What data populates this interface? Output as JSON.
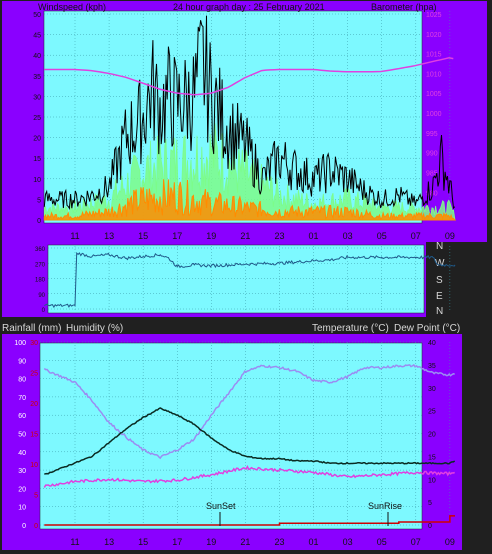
{
  "header": {
    "windspeed_label": "Windspeed (kph)",
    "title": "24 hour graph day : 25 February 2021",
    "barometer_label": "Barometer (hpa)"
  },
  "direction_labels": [
    "N",
    "W",
    "S",
    "E",
    "N"
  ],
  "row_labels": {
    "rainfall": "Rainfall (mm)",
    "humidity": "Humidity (%)",
    "temperature": "Temperature (°C)",
    "dewpoint": "Dew Point (°C)"
  },
  "markers": {
    "sunset": "SunSet",
    "sunrise": "SunRise"
  },
  "x_ticks": [
    "11",
    "13",
    "15",
    "17",
    "19",
    "21",
    "23",
    "01",
    "03",
    "05",
    "07",
    "09"
  ],
  "colors": {
    "panel_bg": "#7df9ff",
    "frame": "#8a00ff",
    "gust": "#000000",
    "average": "#7cfc8a",
    "lull": "#ff8c00",
    "barometer": "#e040e0",
    "direction": "#1f5a8a",
    "temperature": "#0a2b22",
    "humidity": "#9b8cf2",
    "dewpoint": "#e040e0",
    "rainfall": "#d00000"
  },
  "chart_data": [
    {
      "type": "line",
      "title": "24 hour graph day : 25 February 2021",
      "ylabel": "Windspeed (kph)",
      "y2label": "Barometer (hpa)",
      "ylim": [
        0,
        50
      ],
      "y2lim": [
        973,
        1025
      ],
      "yticks": [
        0,
        5,
        10,
        15,
        20,
        25,
        30,
        35,
        40,
        45,
        50
      ],
      "y2ticks": [
        975,
        980,
        985,
        990,
        995,
        1000,
        1005,
        1010,
        1015,
        1020,
        1025
      ],
      "x_hours": [
        0,
        2,
        4,
        6,
        8,
        10,
        12,
        14,
        16,
        18,
        20,
        22
      ],
      "series": [
        {
          "name": "Windspeed (kph)",
          "role": "gust",
          "x": [
            0,
            1,
            2,
            3,
            4,
            4.5,
            5,
            5.5,
            6,
            7,
            7.5,
            8,
            9,
            10,
            11,
            12,
            13,
            14,
            15,
            16,
            17,
            18,
            19,
            20,
            21,
            21.5,
            22,
            22.3
          ],
          "values": [
            5,
            6,
            8,
            20,
            25,
            32,
            27,
            30,
            28,
            30,
            38,
            30,
            22,
            18,
            10,
            15,
            12,
            10,
            12,
            10,
            7,
            5,
            6,
            4,
            8,
            15,
            8,
            3
          ]
        },
        {
          "name": "average",
          "role": "average",
          "x": [
            0,
            2,
            4,
            6,
            8,
            10,
            12,
            14,
            16,
            18,
            20,
            22,
            22.3
          ],
          "values": [
            3,
            5,
            12,
            14,
            16,
            11,
            6,
            4,
            5,
            3,
            3,
            3,
            1
          ]
        },
        {
          "name": "lull",
          "role": "lull",
          "x": [
            0,
            2,
            4,
            6,
            8,
            10,
            12,
            14,
            16,
            18,
            20,
            22,
            22.3
          ],
          "values": [
            1,
            2,
            5,
            6,
            4,
            3,
            2,
            2,
            2,
            1,
            1,
            1,
            0
          ]
        },
        {
          "name": "Barometer (hpa)",
          "axis": "y2",
          "x": [
            0,
            1,
            2,
            3,
            4,
            5,
            6,
            7,
            8,
            9,
            10,
            11,
            12,
            13,
            14,
            15,
            16,
            17,
            18,
            19,
            20,
            21,
            22,
            22.3
          ],
          "values": [
            1011,
            1010.7,
            1010,
            1009,
            1007.5,
            1006,
            1005,
            1004.6,
            1005,
            1006.5,
            1009,
            1010.8,
            1011,
            1011,
            1011,
            1010.6,
            1010.4,
            1010.4,
            1010.5,
            1011.2,
            1012,
            1013,
            1014,
            1013.6
          ]
        }
      ]
    },
    {
      "type": "line",
      "ylabel": "Wind direction",
      "ylim": [
        0,
        360
      ],
      "yticks": [
        0,
        90,
        180,
        270,
        360
      ],
      "series": [
        {
          "name": "Wind direction",
          "x": [
            -1.8,
            0,
            0.1,
            1,
            2,
            3,
            4,
            5,
            5.5,
            6,
            7,
            8,
            10,
            12,
            14,
            15,
            16,
            18,
            20,
            21,
            21.3,
            22.3
          ],
          "values": [
            20,
            20,
            330,
            310,
            320,
            300,
            310,
            320,
            300,
            250,
            260,
            255,
            265,
            270,
            285,
            290,
            305,
            305,
            305,
            305,
            260,
            260
          ]
        }
      ]
    },
    {
      "type": "line",
      "ylabel": "Rainfall (mm) / Humidity (%)",
      "y2label": "Temperature (°C) / Dew Point (°C)",
      "ylim": [
        0,
        100
      ],
      "y2lim": [
        0,
        40
      ],
      "yticks": [
        0,
        10,
        20,
        30,
        40,
        50,
        60,
        70,
        80,
        90,
        100
      ],
      "rain_yticks": [
        "0",
        "5",
        "10",
        "15",
        "20",
        "25",
        "30"
      ],
      "y2ticks": [
        0,
        5,
        10,
        15,
        20,
        25,
        30,
        35,
        40
      ],
      "series": [
        {
          "name": "Temperature (°C)",
          "axis": "y2",
          "x": [
            0,
            1,
            2,
            3,
            4,
            5,
            6,
            7,
            8,
            9,
            10,
            11,
            12,
            13,
            14,
            15,
            16,
            17,
            18,
            19,
            20,
            21,
            22,
            22.3
          ],
          "values": [
            11,
            15,
            18,
            21,
            23.5,
            25.5,
            24,
            22,
            19,
            16.5,
            15,
            14.5,
            14.5,
            14,
            14,
            13.5,
            13.5,
            13.5,
            13.5,
            13.5,
            13.5,
            13.5,
            13.5,
            14
          ]
        },
        {
          "name": "Humidity (%)",
          "x": [
            -1.8,
            0,
            1,
            2,
            3,
            4,
            5,
            6,
            7,
            8,
            9,
            10,
            11,
            12,
            13,
            14,
            15,
            16,
            17,
            18,
            19,
            20,
            21,
            22,
            22.3
          ],
          "values": [
            85,
            78,
            68,
            56,
            48,
            41,
            37,
            41,
            47,
            60,
            72,
            84,
            87,
            86,
            84,
            79,
            78,
            81,
            86,
            86,
            87,
            87,
            83,
            82,
            83
          ]
        },
        {
          "name": "Dew Point (°C)",
          "axis": "y2",
          "x": [
            -1.8,
            0,
            2,
            4,
            6,
            8,
            10,
            12,
            14,
            16,
            18,
            20,
            22,
            22.3
          ],
          "values": [
            8.5,
            9.5,
            10,
            9.5,
            9.8,
            11,
            12.5,
            12,
            11.5,
            10.5,
            11,
            11.5,
            11.2,
            11.8
          ]
        },
        {
          "name": "Rainfall (mm)",
          "x": [
            -1.8,
            10,
            12,
            12,
            19,
            19,
            22,
            22,
            22.3
          ],
          "values": [
            0,
            0,
            0,
            0.3,
            0.3,
            0.5,
            0.5,
            1.5,
            1.5
          ]
        }
      ]
    }
  ]
}
